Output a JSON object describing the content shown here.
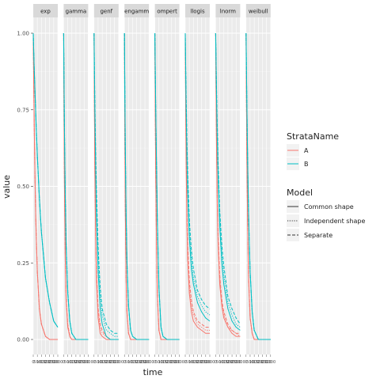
{
  "chart_data": {
    "type": "line",
    "facets": [
      "exp",
      "gamma",
      "genf",
      "gengamma",
      "gompertz",
      "llogis",
      "lnorm",
      "weibull"
    ],
    "facet_strip_text": [
      "exp",
      "gamma",
      "genf",
      "engamm",
      "ompert",
      "llogis",
      "lnorm",
      "weibull"
    ],
    "xlabel": "time",
    "ylabel": "value",
    "ylim": [
      0,
      1
    ],
    "xlim": [
      0,
      3000
    ],
    "y_ticks": [
      0,
      0.25,
      0.5,
      0.75,
      1
    ],
    "y_tick_labels": [
      "0.00",
      "0.25",
      "0.50",
      "0.75",
      "1.00"
    ],
    "x_ticks": [
      0,
      500,
      1000,
      1500,
      2000,
      2500,
      3000
    ],
    "x_tick_labels": [
      "0",
      "500",
      "1000",
      "1500",
      "2000",
      "2500",
      "3000"
    ],
    "grid": true,
    "legend_placement": "right",
    "legend_strata": {
      "title": "StrataName",
      "entries": [
        {
          "label": "A",
          "color": "#F8766D"
        },
        {
          "label": "B",
          "color": "#00BFC4"
        }
      ]
    },
    "legend_model": {
      "title": "Model",
      "entries": [
        {
          "label": "Common shape",
          "dash": "solid"
        },
        {
          "label": "Independent shape",
          "dash": "dotted"
        },
        {
          "label": "Separate",
          "dash": "dashed"
        }
      ]
    },
    "x": [
      0,
      50,
      100,
      200,
      300,
      500,
      750,
      1000,
      1500,
      2000,
      2500,
      3000
    ],
    "panels": [
      {
        "facet": "exp",
        "series": [
          {
            "strata": "A",
            "model": "Common shape",
            "values": [
              1.0,
              0.86,
              0.74,
              0.55,
              0.4,
              0.22,
              0.1,
              0.05,
              0.01,
              0.0,
              0.0,
              0.0
            ]
          },
          {
            "strata": "A",
            "model": "Independent shape",
            "values": [
              1.0,
              0.86,
              0.74,
              0.55,
              0.4,
              0.22,
              0.1,
              0.05,
              0.01,
              0.0,
              0.0,
              0.0
            ]
          },
          {
            "strata": "A",
            "model": "Separate",
            "values": [
              1.0,
              0.86,
              0.74,
              0.55,
              0.4,
              0.22,
              0.1,
              0.05,
              0.01,
              0.0,
              0.0,
              0.0
            ]
          },
          {
            "strata": "B",
            "model": "Common shape",
            "values": [
              1.0,
              0.95,
              0.9,
              0.82,
              0.74,
              0.6,
              0.46,
              0.35,
              0.2,
              0.12,
              0.06,
              0.04
            ]
          },
          {
            "strata": "B",
            "model": "Independent shape",
            "values": [
              1.0,
              0.95,
              0.9,
              0.82,
              0.74,
              0.6,
              0.46,
              0.35,
              0.2,
              0.12,
              0.06,
              0.04
            ]
          },
          {
            "strata": "B",
            "model": "Separate",
            "values": [
              1.0,
              0.95,
              0.9,
              0.82,
              0.74,
              0.6,
              0.46,
              0.35,
              0.2,
              0.12,
              0.06,
              0.04
            ]
          }
        ]
      },
      {
        "facet": "gamma",
        "series": [
          {
            "strata": "A",
            "model": "Common shape",
            "values": [
              1.0,
              0.7,
              0.5,
              0.26,
              0.13,
              0.04,
              0.01,
              0.0,
              0.0,
              0.0,
              0.0,
              0.0
            ]
          },
          {
            "strata": "A",
            "model": "Independent shape",
            "values": [
              1.0,
              0.71,
              0.51,
              0.27,
              0.14,
              0.05,
              0.01,
              0.0,
              0.0,
              0.0,
              0.0,
              0.0
            ]
          },
          {
            "strata": "A",
            "model": "Separate",
            "values": [
              1.0,
              0.71,
              0.51,
              0.27,
              0.14,
              0.05,
              0.01,
              0.0,
              0.0,
              0.0,
              0.0,
              0.0
            ]
          },
          {
            "strata": "B",
            "model": "Common shape",
            "values": [
              1.0,
              0.82,
              0.68,
              0.46,
              0.31,
              0.15,
              0.06,
              0.02,
              0.0,
              0.0,
              0.0,
              0.0
            ]
          },
          {
            "strata": "B",
            "model": "Independent shape",
            "values": [
              1.0,
              0.83,
              0.69,
              0.47,
              0.32,
              0.16,
              0.06,
              0.02,
              0.0,
              0.0,
              0.0,
              0.0
            ]
          },
          {
            "strata": "B",
            "model": "Separate",
            "values": [
              1.0,
              0.83,
              0.69,
              0.47,
              0.32,
              0.16,
              0.06,
              0.02,
              0.0,
              0.0,
              0.0,
              0.0
            ]
          }
        ]
      },
      {
        "facet": "genf",
        "series": [
          {
            "strata": "A",
            "model": "Common shape",
            "values": [
              1.0,
              0.74,
              0.55,
              0.32,
              0.19,
              0.07,
              0.02,
              0.01,
              0.0,
              0.0,
              0.0,
              0.0
            ]
          },
          {
            "strata": "A",
            "model": "Independent shape",
            "values": [
              1.0,
              0.75,
              0.56,
              0.33,
              0.21,
              0.09,
              0.04,
              0.02,
              0.01,
              0.0,
              0.0,
              0.0
            ]
          },
          {
            "strata": "A",
            "model": "Separate",
            "values": [
              1.0,
              0.76,
              0.57,
              0.34,
              0.22,
              0.1,
              0.05,
              0.03,
              0.01,
              0.0,
              0.0,
              0.0
            ]
          },
          {
            "strata": "B",
            "model": "Common shape",
            "values": [
              1.0,
              0.86,
              0.74,
              0.55,
              0.4,
              0.22,
              0.1,
              0.05,
              0.01,
              0.0,
              0.0,
              0.0
            ]
          },
          {
            "strata": "B",
            "model": "Independent shape",
            "values": [
              1.0,
              0.87,
              0.76,
              0.58,
              0.44,
              0.26,
              0.14,
              0.08,
              0.03,
              0.02,
              0.01,
              0.01
            ]
          },
          {
            "strata": "B",
            "model": "Separate",
            "values": [
              1.0,
              0.88,
              0.78,
              0.61,
              0.48,
              0.3,
              0.17,
              0.1,
              0.05,
              0.03,
              0.02,
              0.02
            ]
          }
        ]
      },
      {
        "facet": "gengamma",
        "series": [
          {
            "strata": "A",
            "model": "Common shape",
            "values": [
              1.0,
              0.66,
              0.44,
              0.2,
              0.09,
              0.02,
              0.0,
              0.0,
              0.0,
              0.0,
              0.0,
              0.0
            ]
          },
          {
            "strata": "A",
            "model": "Independent shape",
            "values": [
              1.0,
              0.66,
              0.44,
              0.2,
              0.09,
              0.02,
              0.0,
              0.0,
              0.0,
              0.0,
              0.0,
              0.0
            ]
          },
          {
            "strata": "A",
            "model": "Separate",
            "values": [
              1.0,
              0.66,
              0.44,
              0.2,
              0.09,
              0.02,
              0.0,
              0.0,
              0.0,
              0.0,
              0.0,
              0.0
            ]
          },
          {
            "strata": "B",
            "model": "Common shape",
            "values": [
              1.0,
              0.8,
              0.64,
              0.41,
              0.26,
              0.11,
              0.03,
              0.01,
              0.0,
              0.0,
              0.0,
              0.0
            ]
          },
          {
            "strata": "B",
            "model": "Independent shape",
            "values": [
              1.0,
              0.8,
              0.64,
              0.41,
              0.26,
              0.11,
              0.03,
              0.01,
              0.0,
              0.0,
              0.0,
              0.0
            ]
          },
          {
            "strata": "B",
            "model": "Separate",
            "values": [
              1.0,
              0.8,
              0.64,
              0.41,
              0.26,
              0.11,
              0.03,
              0.01,
              0.0,
              0.0,
              0.0,
              0.0
            ]
          }
        ]
      },
      {
        "facet": "gompertz",
        "series": [
          {
            "strata": "A",
            "model": "Common shape",
            "values": [
              1.0,
              0.76,
              0.57,
              0.31,
              0.15,
              0.03,
              0.0,
              0.0,
              0.0,
              0.0,
              0.0,
              0.0
            ]
          },
          {
            "strata": "A",
            "model": "Independent shape",
            "values": [
              1.0,
              0.76,
              0.57,
              0.31,
              0.15,
              0.03,
              0.0,
              0.0,
              0.0,
              0.0,
              0.0,
              0.0
            ]
          },
          {
            "strata": "A",
            "model": "Separate",
            "values": [
              1.0,
              0.76,
              0.57,
              0.31,
              0.15,
              0.03,
              0.0,
              0.0,
              0.0,
              0.0,
              0.0,
              0.0
            ]
          },
          {
            "strata": "B",
            "model": "Common shape",
            "values": [
              1.0,
              0.88,
              0.77,
              0.57,
              0.4,
              0.17,
              0.04,
              0.01,
              0.0,
              0.0,
              0.0,
              0.0
            ]
          },
          {
            "strata": "B",
            "model": "Independent shape",
            "values": [
              1.0,
              0.88,
              0.77,
              0.57,
              0.4,
              0.17,
              0.04,
              0.01,
              0.0,
              0.0,
              0.0,
              0.0
            ]
          },
          {
            "strata": "B",
            "model": "Separate",
            "values": [
              1.0,
              0.88,
              0.77,
              0.57,
              0.4,
              0.17,
              0.04,
              0.01,
              0.0,
              0.0,
              0.0,
              0.0
            ]
          }
        ]
      },
      {
        "facet": "llogis",
        "series": [
          {
            "strata": "A",
            "model": "Common shape",
            "values": [
              1.0,
              0.78,
              0.6,
              0.38,
              0.26,
              0.15,
              0.09,
              0.06,
              0.04,
              0.03,
              0.02,
              0.02
            ]
          },
          {
            "strata": "A",
            "model": "Independent shape",
            "values": [
              1.0,
              0.79,
              0.62,
              0.41,
              0.29,
              0.17,
              0.11,
              0.08,
              0.05,
              0.04,
              0.03,
              0.03
            ]
          },
          {
            "strata": "A",
            "model": "Separate",
            "values": [
              1.0,
              0.8,
              0.64,
              0.43,
              0.31,
              0.19,
              0.13,
              0.09,
              0.06,
              0.05,
              0.04,
              0.04
            ]
          },
          {
            "strata": "B",
            "model": "Common shape",
            "values": [
              1.0,
              0.88,
              0.77,
              0.6,
              0.48,
              0.33,
              0.23,
              0.18,
              0.12,
              0.09,
              0.07,
              0.06
            ]
          },
          {
            "strata": "B",
            "model": "Independent shape",
            "values": [
              1.0,
              0.89,
              0.79,
              0.63,
              0.51,
              0.36,
              0.26,
              0.2,
              0.14,
              0.11,
              0.09,
              0.08
            ]
          },
          {
            "strata": "B",
            "model": "Separate",
            "values": [
              1.0,
              0.9,
              0.81,
              0.66,
              0.54,
              0.39,
              0.29,
              0.23,
              0.16,
              0.13,
              0.11,
              0.1
            ]
          }
        ]
      },
      {
        "facet": "lnorm",
        "series": [
          {
            "strata": "A",
            "model": "Common shape",
            "values": [
              1.0,
              0.8,
              0.64,
              0.43,
              0.31,
              0.18,
              0.11,
              0.07,
              0.04,
              0.02,
              0.01,
              0.01
            ]
          },
          {
            "strata": "A",
            "model": "Independent shape",
            "values": [
              1.0,
              0.81,
              0.66,
              0.45,
              0.33,
              0.2,
              0.12,
              0.08,
              0.04,
              0.03,
              0.02,
              0.01
            ]
          },
          {
            "strata": "A",
            "model": "Separate",
            "values": [
              1.0,
              0.82,
              0.67,
              0.46,
              0.34,
              0.21,
              0.13,
              0.09,
              0.05,
              0.03,
              0.02,
              0.02
            ]
          },
          {
            "strata": "B",
            "model": "Common shape",
            "values": [
              1.0,
              0.9,
              0.8,
              0.65,
              0.53,
              0.37,
              0.25,
              0.18,
              0.1,
              0.06,
              0.04,
              0.03
            ]
          },
          {
            "strata": "B",
            "model": "Independent shape",
            "values": [
              1.0,
              0.91,
              0.82,
              0.68,
              0.56,
              0.4,
              0.28,
              0.21,
              0.12,
              0.08,
              0.05,
              0.04
            ]
          },
          {
            "strata": "B",
            "model": "Separate",
            "values": [
              1.0,
              0.91,
              0.83,
              0.7,
              0.58,
              0.42,
              0.31,
              0.24,
              0.14,
              0.1,
              0.07,
              0.05
            ]
          }
        ]
      },
      {
        "facet": "weibull",
        "series": [
          {
            "strata": "A",
            "model": "Common shape",
            "values": [
              1.0,
              0.78,
              0.6,
              0.36,
              0.21,
              0.07,
              0.02,
              0.0,
              0.0,
              0.0,
              0.0,
              0.0
            ]
          },
          {
            "strata": "A",
            "model": "Independent shape",
            "values": [
              1.0,
              0.78,
              0.6,
              0.36,
              0.21,
              0.07,
              0.02,
              0.0,
              0.0,
              0.0,
              0.0,
              0.0
            ]
          },
          {
            "strata": "A",
            "model": "Separate",
            "values": [
              1.0,
              0.78,
              0.6,
              0.36,
              0.21,
              0.07,
              0.02,
              0.0,
              0.0,
              0.0,
              0.0,
              0.0
            ]
          },
          {
            "strata": "B",
            "model": "Common shape",
            "values": [
              1.0,
              0.88,
              0.77,
              0.57,
              0.42,
              0.22,
              0.09,
              0.03,
              0.0,
              0.0,
              0.0,
              0.0
            ]
          },
          {
            "strata": "B",
            "model": "Independent shape",
            "values": [
              1.0,
              0.88,
              0.77,
              0.57,
              0.42,
              0.22,
              0.09,
              0.03,
              0.0,
              0.0,
              0.0,
              0.0
            ]
          },
          {
            "strata": "B",
            "model": "Separate",
            "values": [
              1.0,
              0.88,
              0.77,
              0.57,
              0.42,
              0.22,
              0.09,
              0.03,
              0.0,
              0.0,
              0.0,
              0.0
            ]
          }
        ]
      }
    ]
  }
}
